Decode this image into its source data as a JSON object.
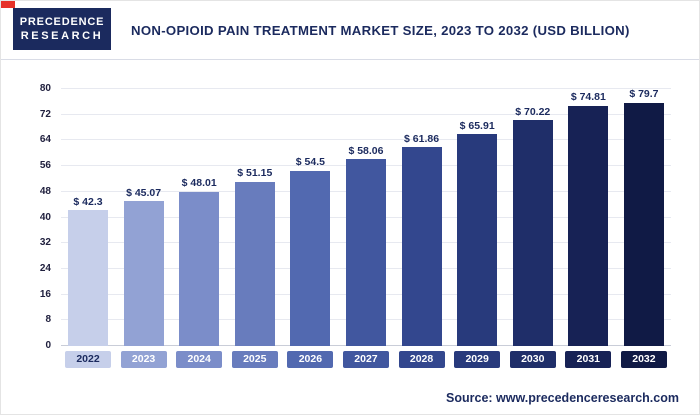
{
  "header": {
    "logo": {
      "line1": "PRECEDENCE",
      "line2": "RESEARCH"
    },
    "title": "NON-OPIOID PAIN TREATMENT MARKET SIZE, 2023 TO 2032 (USD BILLION)"
  },
  "footer": {
    "source": "Source: www.precedenceresearch.com"
  },
  "colors": {
    "brand_navy": "#1b2a5e",
    "accent_red": "#e63129",
    "gridline": "#e7e9f0",
    "axis_line": "#c9cdd8"
  },
  "chart_data": {
    "type": "bar",
    "title": "Non-Opioid Pain Treatment Market Size, 2023 to 2032 (USD Billion)",
    "categories": [
      "2022",
      "2023",
      "2024",
      "2025",
      "2026",
      "2027",
      "2028",
      "2029",
      "2030",
      "2031",
      "2032"
    ],
    "values": [
      42.3,
      45.07,
      48.01,
      51.15,
      54.5,
      58.06,
      61.86,
      65.91,
      70.22,
      74.81,
      79.7
    ],
    "value_labels": [
      "$ 42.3",
      "$ 45.07",
      "$ 48.01",
      "$ 51.15",
      "$ 54.5",
      "$ 58.06",
      "$ 61.86",
      "$ 65.91",
      "$ 70.22",
      "$ 74.81",
      "$ 79.7"
    ],
    "bar_colors": [
      "#c6cfea",
      "#92a2d4",
      "#7b8dc9",
      "#687cbd",
      "#5269b0",
      "#41579f",
      "#33478e",
      "#283a7c",
      "#1f2e69",
      "#172255",
      "#101a45"
    ],
    "chip_text_colors": [
      "#1b2a5e",
      "#ffffff",
      "#ffffff",
      "#ffffff",
      "#ffffff",
      "#ffffff",
      "#ffffff",
      "#ffffff",
      "#ffffff",
      "#ffffff",
      "#ffffff"
    ],
    "xlabel": "",
    "ylabel": "",
    "ylim": [
      0,
      80
    ],
    "yticks": [
      0,
      8,
      16,
      24,
      32,
      40,
      48,
      56,
      64,
      72,
      80
    ],
    "grid": true,
    "legend": false,
    "unit": "USD Billion"
  }
}
